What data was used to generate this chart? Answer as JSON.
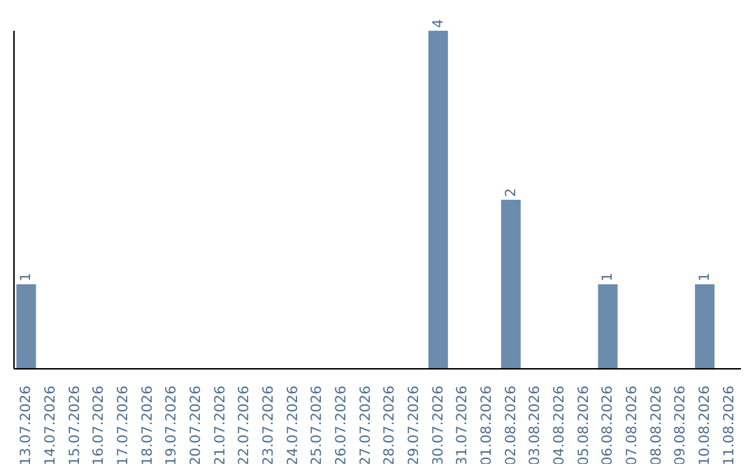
{
  "chart_data": {
    "type": "bar",
    "categories": [
      "13.07.2026",
      "14.07.2026",
      "15.07.2026",
      "16.07.2026",
      "17.07.2026",
      "18.07.2026",
      "19.07.2026",
      "20.07.2026",
      "21.07.2026",
      "22.07.2026",
      "23.07.2026",
      "24.07.2026",
      "25.07.2026",
      "26.07.2026",
      "27.07.2026",
      "28.07.2026",
      "29.07.2026",
      "30.07.2026",
      "31.07.2026",
      "01.08.2026",
      "02.08.2026",
      "03.08.2026",
      "04.08.2026",
      "05.08.2026",
      "06.08.2026",
      "07.08.2026",
      "08.08.2026",
      "09.08.2026",
      "10.08.2026",
      "11.08.2026"
    ],
    "values": [
      1,
      0,
      0,
      0,
      0,
      0,
      0,
      0,
      0,
      0,
      0,
      0,
      0,
      0,
      0,
      0,
      0,
      4,
      0,
      0,
      2,
      0,
      0,
      0,
      1,
      0,
      0,
      0,
      1,
      0
    ],
    "value_labels": [
      "1",
      null,
      null,
      null,
      null,
      null,
      null,
      null,
      null,
      null,
      null,
      null,
      null,
      null,
      null,
      null,
      null,
      "4",
      null,
      null,
      "2",
      null,
      null,
      null,
      "1",
      null,
      null,
      null,
      "1",
      null
    ],
    "color": "#6b8cad",
    "grid": false,
    "legend": false
  }
}
